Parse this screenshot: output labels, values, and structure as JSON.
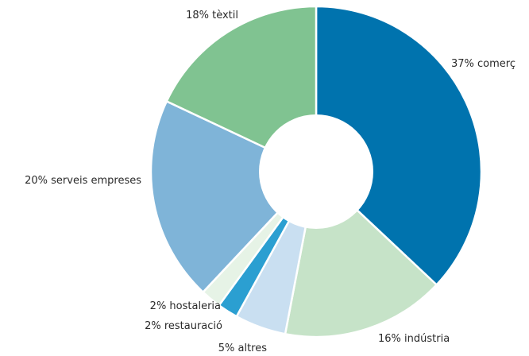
{
  "chart_data": {
    "type": "pie",
    "variant": "donut",
    "unit": "%",
    "slices": [
      {
        "label": "37% comerç",
        "value": 37,
        "color": "#0073ae"
      },
      {
        "label": "16% indústria",
        "value": 16,
        "color": "#c6e3c8"
      },
      {
        "label": "5% altres",
        "value": 5,
        "color": "#c9dff1"
      },
      {
        "label": "2% restauració",
        "value": 2,
        "color": "#2b9fd1"
      },
      {
        "label": "2% hostaleria",
        "value": 2,
        "color": "#e6f3e6"
      },
      {
        "label": "20% serveis empreses",
        "value": 20,
        "color": "#7fb4d8"
      },
      {
        "label": "18% tèxtil",
        "value": 18,
        "color": "#80c391"
      }
    ]
  }
}
